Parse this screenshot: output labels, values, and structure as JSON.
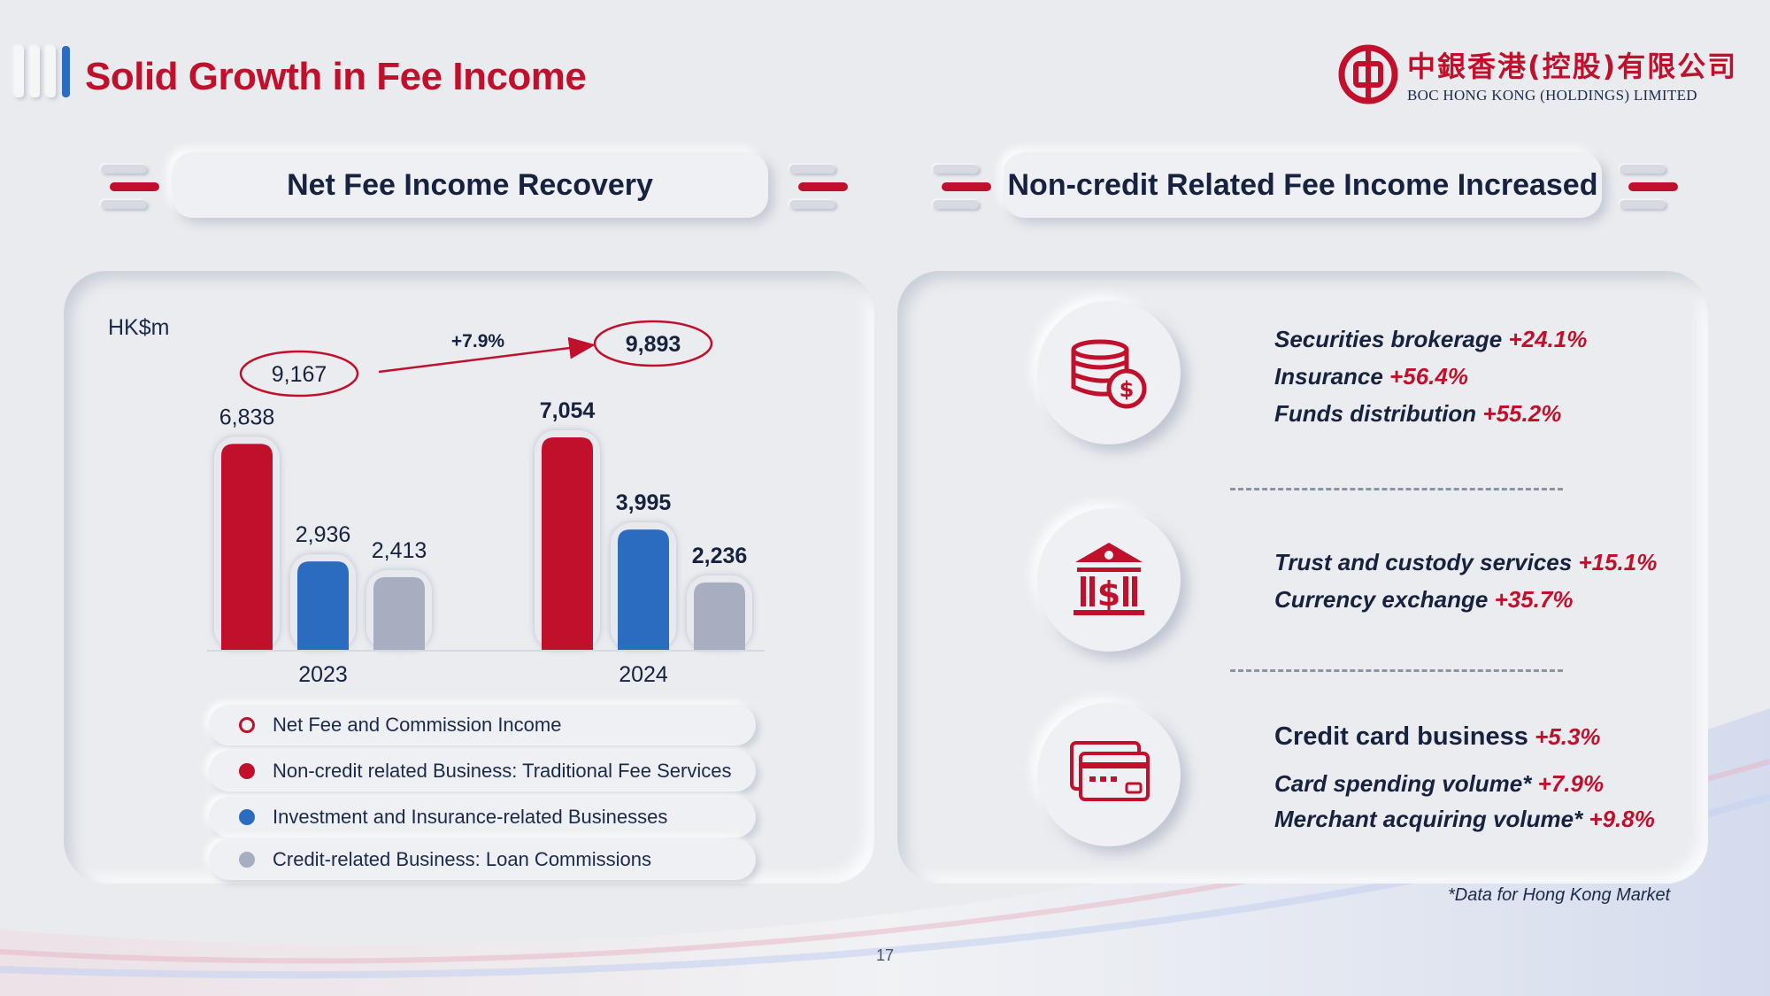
{
  "header": {
    "title": "Solid Growth in Fee Income",
    "logo_cn": "中銀香港(控股)有限公司",
    "logo_en": "BOC HONG KONG (HOLDINGS) LIMITED"
  },
  "left_section": {
    "title": "Net Fee Income Recovery"
  },
  "right_section": {
    "title": "Non-credit Related Fee Income Increased"
  },
  "chart_data": {
    "type": "bar",
    "unit_label": "HK$m",
    "categories": [
      "2023",
      "2024"
    ],
    "series": [
      {
        "name": "Non-credit related Business: Traditional Fee Services",
        "values": [
          6838,
          7054
        ],
        "labels": [
          "6,838",
          "7,054"
        ],
        "color": "#c0102c"
      },
      {
        "name": "Investment and Insurance-related Businesses",
        "values": [
          2936,
          3995
        ],
        "labels": [
          "2,936",
          "3,995"
        ],
        "color": "#2c6cc0"
      },
      {
        "name": "Credit-related Business: Loan Commissions",
        "values": [
          2413,
          2236
        ],
        "labels": [
          "2,413",
          "2,236"
        ],
        "color": "#a6aec0"
      }
    ],
    "totals": {
      "name": "Net Fee and Commission Income",
      "values": [
        9167,
        9893
      ],
      "labels": [
        "9,167",
        "9,893"
      ]
    },
    "growth_label": "+7.9%",
    "bold_categories": [
      "2024"
    ]
  },
  "legend": [
    {
      "label": "Net Fee and Commission Income",
      "marker": "ring",
      "color": "#c0102c"
    },
    {
      "label": "Non-credit related Business: Traditional Fee Services",
      "marker": "dot",
      "color": "#c0102c"
    },
    {
      "label": "Investment and Insurance-related Businesses",
      "marker": "dot",
      "color": "#2c6cc0"
    },
    {
      "label": "Credit-related Business: Loan Commissions",
      "marker": "dot",
      "color": "#a6aec0"
    }
  ],
  "right_groups": [
    {
      "icon": "coins-dollar-icon",
      "lines": [
        {
          "text": "Securities brokerage",
          "pct": "+24.1%"
        },
        {
          "text": "Insurance",
          "pct": "+56.4%"
        },
        {
          "text": "Funds distribution",
          "pct": "+55.2%"
        }
      ]
    },
    {
      "icon": "bank-dollar-icon",
      "lines": [
        {
          "text": "Trust and custody services",
          "pct": "+15.1%"
        },
        {
          "text": "Currency exchange ",
          "pct": "+35.7%"
        }
      ]
    },
    {
      "icon": "credit-card-icon",
      "lines": [
        {
          "text": "Credit card business",
          "pct": "+5.3%"
        },
        {
          "text": "Card spending volume*",
          "pct": "+7.9%"
        },
        {
          "text": "Merchant acquiring volume*",
          "pct": "+9.8%"
        }
      ]
    }
  ],
  "footnote": "*Data for Hong Kong Market",
  "page_number": "17",
  "colors": {
    "accent_red": "#c0102c",
    "accent_blue": "#2c6cc0",
    "gray": "#a6aec0"
  }
}
